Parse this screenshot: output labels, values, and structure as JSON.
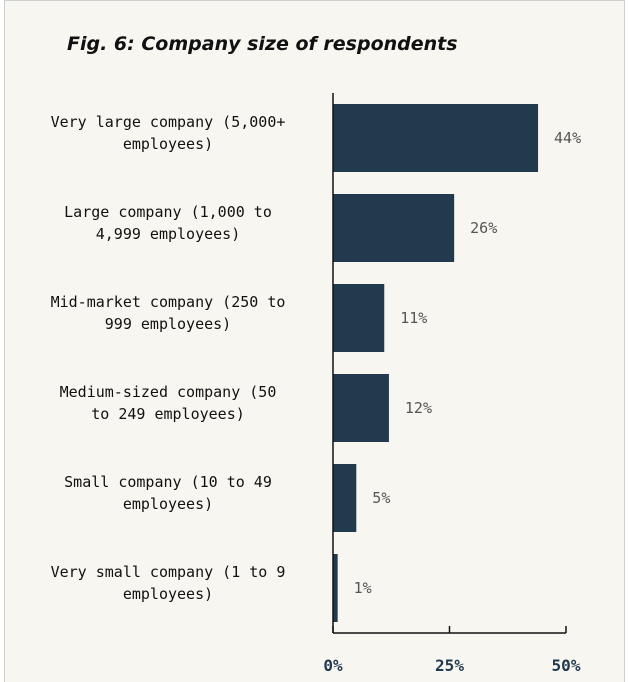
{
  "title": "Fig. 6: Company size of respondents",
  "colors": {
    "bar": "#223a4e",
    "axis": "#111111",
    "background": "#f8f6f1"
  },
  "chart_data": {
    "type": "bar",
    "orientation": "horizontal",
    "title": "Fig. 6: Company size of respondents",
    "categories": [
      [
        "Very large company (5,000+",
        "employees)"
      ],
      [
        "Large company (1,000 to",
        "4,999 employees)"
      ],
      [
        "Mid-market company (250 to",
        "999 employees)"
      ],
      [
        "Medium-sized company (50",
        "to 249 employees)"
      ],
      [
        "Small company (10 to 49",
        "employees)"
      ],
      [
        "Very small company (1 to 9",
        "employees)"
      ]
    ],
    "values": [
      44,
      26,
      11,
      12,
      5,
      1
    ],
    "value_labels": [
      "44%",
      "26%",
      "11%",
      "12%",
      "5%",
      "1%"
    ],
    "xlim": [
      0,
      50
    ],
    "xticks": [
      0,
      25,
      50
    ],
    "xtick_labels": [
      "0%",
      "25%",
      "50%"
    ],
    "xlabel": "",
    "ylabel": "",
    "grid": false,
    "legend": "none"
  }
}
